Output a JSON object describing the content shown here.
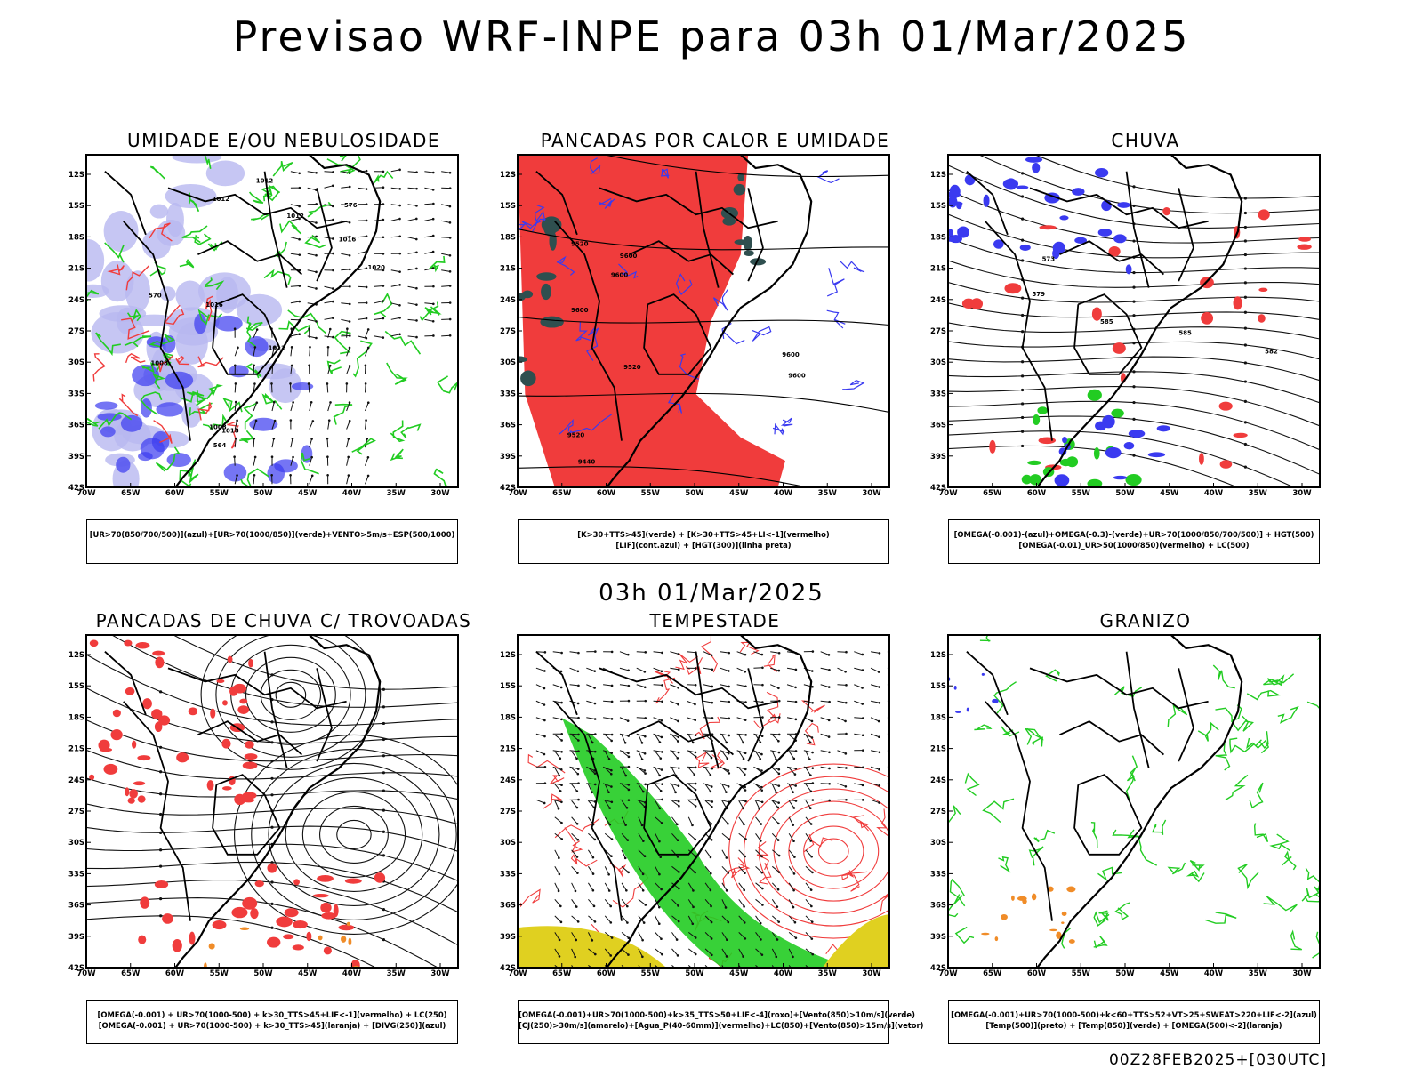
{
  "title": "Previsao WRF-INPE  para 03h 01/Mar/2025",
  "mid_time": "03h 01/Mar/2025",
  "footer": "00Z28FEB2025+[030UTC]",
  "lat_labels": [
    "12S",
    "15S",
    "18S",
    "21S",
    "24S",
    "27S",
    "30S",
    "33S",
    "36S",
    "39S",
    "42S"
  ],
  "lon_labels": [
    "70W",
    "65W",
    "60W",
    "55W",
    "50W",
    "45W",
    "40W",
    "35W",
    "30W"
  ],
  "panels": [
    {
      "title": "UMIDADE E/OU NEBULOSIDADE",
      "legend": [
        "[UR>70(850/700/500)](azul)+[UR>70(1000/850)](verde)+VENTO>5m/s+ESP(500/1000)"
      ],
      "contour_labels": [
        "1012",
        "1012",
        "1012",
        "1016",
        "1016",
        "1018",
        "1020",
        "1008",
        "1008",
        "1012",
        "576",
        "570",
        "564"
      ]
    },
    {
      "title": "PANCADAS POR CALOR E UMIDADE",
      "legend": [
        "[K>30+TTS>45](verde) + [K>30+TTS>45+LI<-1](vermelho)",
        "[LIF](cont.azul) + [HGT(300)](linha preta)"
      ],
      "contour_labels": [
        "9600",
        "9600",
        "9600",
        "9600",
        "9520",
        "9440",
        "9520",
        "9520",
        "9600"
      ]
    },
    {
      "title": "CHUVA",
      "legend": [
        "[OMEGA(-0.001)-(azul)+OMEGA(-0.3)-(verde)+UR>70(1000/850/700/500)] + HGT(500)",
        "[OMEGA(-0.01)_UR>50(1000/850)(vermelho) + LC(500)"
      ],
      "contour_labels": [
        "585",
        "573",
        "582",
        "579",
        "585"
      ]
    },
    {
      "title": "PANCADAS DE CHUVA C/ TROVOADAS",
      "legend": [
        "[OMEGA(-0.001) + UR>70(1000-500) + k>30_TTS>45+LIF<-1](vermelho) + LC(250)",
        "[OMEGA(-0.001) + UR>70(1000-500) + k>30_TTS>45](laranja) + [DIVG(250)](azul)"
      ],
      "contour_labels": []
    },
    {
      "title": "TEMPESTADE",
      "legend": [
        "[OMEGA(-0.001)+UR>70(1000-500)+k>35_TTS>50+LIF<-4](roxo)+[Vento(850)>10m/s](verde)",
        "[CJ(250)>30m/s](amarelo)+[Agua_P(40-60mm)](vermelho)+LC(850)+[Vento(850)>15m/s](vetor)"
      ],
      "contour_labels": []
    },
    {
      "title": "GRANIZO",
      "legend": [
        "[OMEGA(-0.001)+UR>70(1000-500)+k<60+TTS>52+VT>25+SWEAT>220+LIF<-2](azul)",
        "[Temp(500)](preto) + [Temp(850)](verde) + [OMEGA(500)<-2](laranja)"
      ],
      "contour_labels": []
    }
  ],
  "colors": {
    "blue": "#3a3af0",
    "lightblue": "#b8b8f0",
    "green": "#22cc22",
    "red": "#f03c3c",
    "darkteal": "#2f4f4f",
    "orange": "#f08c28",
    "yellow": "#e0d020"
  }
}
